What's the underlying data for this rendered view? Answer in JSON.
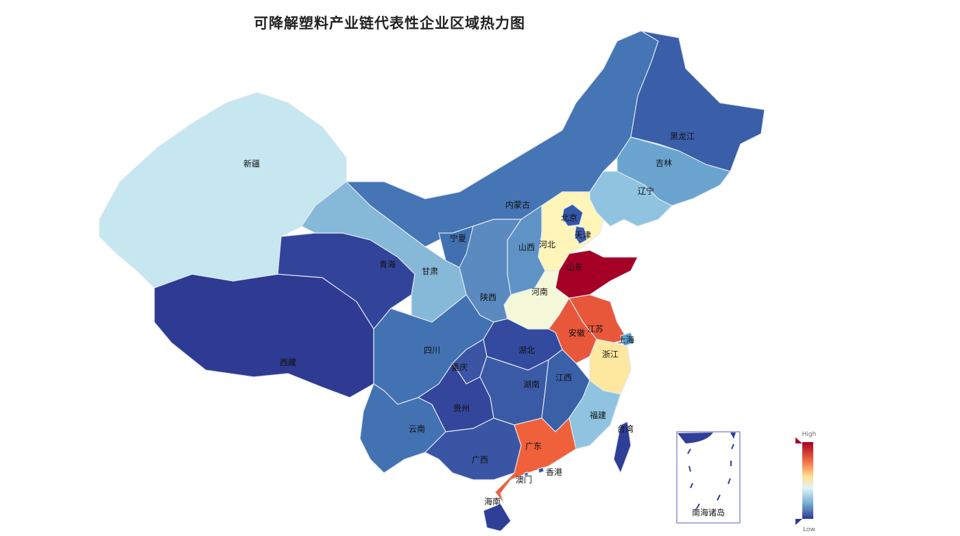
{
  "title": "可降解塑料产业链代表性企业区域热力图",
  "legend": {
    "high": "High",
    "low": "Low",
    "colors": [
      "#a50026",
      "#f46d43",
      "#fee090",
      "#e0f3f8",
      "#74add1",
      "#313695"
    ]
  },
  "inset_label": "南海诸岛",
  "regions": [
    {
      "key": "xinjiang",
      "name": "新疆",
      "color": "#c6e6f0"
    },
    {
      "key": "tibet",
      "name": "西藏",
      "color": "#2f3a92"
    },
    {
      "key": "qinghai",
      "name": "青海",
      "color": "#32449a"
    },
    {
      "key": "gansu",
      "name": "甘肃",
      "color": "#86b8d8"
    },
    {
      "key": "neimenggu",
      "name": "内蒙古",
      "color": "#4575b4"
    },
    {
      "key": "heilongjiang",
      "name": "黑龙江",
      "color": "#3a5ea8"
    },
    {
      "key": "jilin",
      "name": "吉林",
      "color": "#6aa4cf"
    },
    {
      "key": "liaoning",
      "name": "辽宁",
      "color": "#8fc3e0"
    },
    {
      "key": "hebei",
      "name": "河北",
      "color": "#fff5b8"
    },
    {
      "key": "beijing",
      "name": "北京",
      "color": "#3457a8"
    },
    {
      "key": "tianjin",
      "name": "天津",
      "color": "#3f5ba8"
    },
    {
      "key": "shanxi",
      "name": "山西",
      "color": "#5f93c6"
    },
    {
      "key": "shandong",
      "name": "山东",
      "color": "#a50026"
    },
    {
      "key": "henan",
      "name": "河南",
      "color": "#f5f8d8"
    },
    {
      "key": "shaanxi",
      "name": "陕西",
      "color": "#5b8ac0"
    },
    {
      "key": "ningxia",
      "name": "宁夏",
      "color": "#4070b0"
    },
    {
      "key": "jiangsu",
      "name": "江苏",
      "color": "#e8573a"
    },
    {
      "key": "anhui",
      "name": "安徽",
      "color": "#e8573a"
    },
    {
      "key": "shanghai",
      "name": "上海",
      "color": "#5a9cd0"
    },
    {
      "key": "zhejiang",
      "name": "浙江",
      "color": "#fee8a0"
    },
    {
      "key": "hubei",
      "name": "湖北",
      "color": "#334a9e"
    },
    {
      "key": "sichuan",
      "name": "四川",
      "color": "#4272b2"
    },
    {
      "key": "chongqing",
      "name": "重庆",
      "color": "#3b55a4"
    },
    {
      "key": "yunnan",
      "name": "云南",
      "color": "#4272b2"
    },
    {
      "key": "guizhou",
      "name": "贵州",
      "color": "#34459c"
    },
    {
      "key": "hunan",
      "name": "湖南",
      "color": "#3b5aa6"
    },
    {
      "key": "jiangxi",
      "name": "江西",
      "color": "#3a60a8"
    },
    {
      "key": "fujian",
      "name": "福建",
      "color": "#8fc3e0"
    },
    {
      "key": "guangxi",
      "name": "广西",
      "color": "#3a55a4"
    },
    {
      "key": "guangdong",
      "name": "广东",
      "color": "#f0603a"
    },
    {
      "key": "hainan",
      "name": "海南",
      "color": "#2f3e96"
    },
    {
      "key": "taiwan",
      "name": "台湾",
      "color": "#2f3e96"
    },
    {
      "key": "hongkong",
      "name": "香港",
      "color": "#3a55a4"
    },
    {
      "key": "macau",
      "name": "澳门",
      "color": "#3a55a4"
    }
  ]
}
